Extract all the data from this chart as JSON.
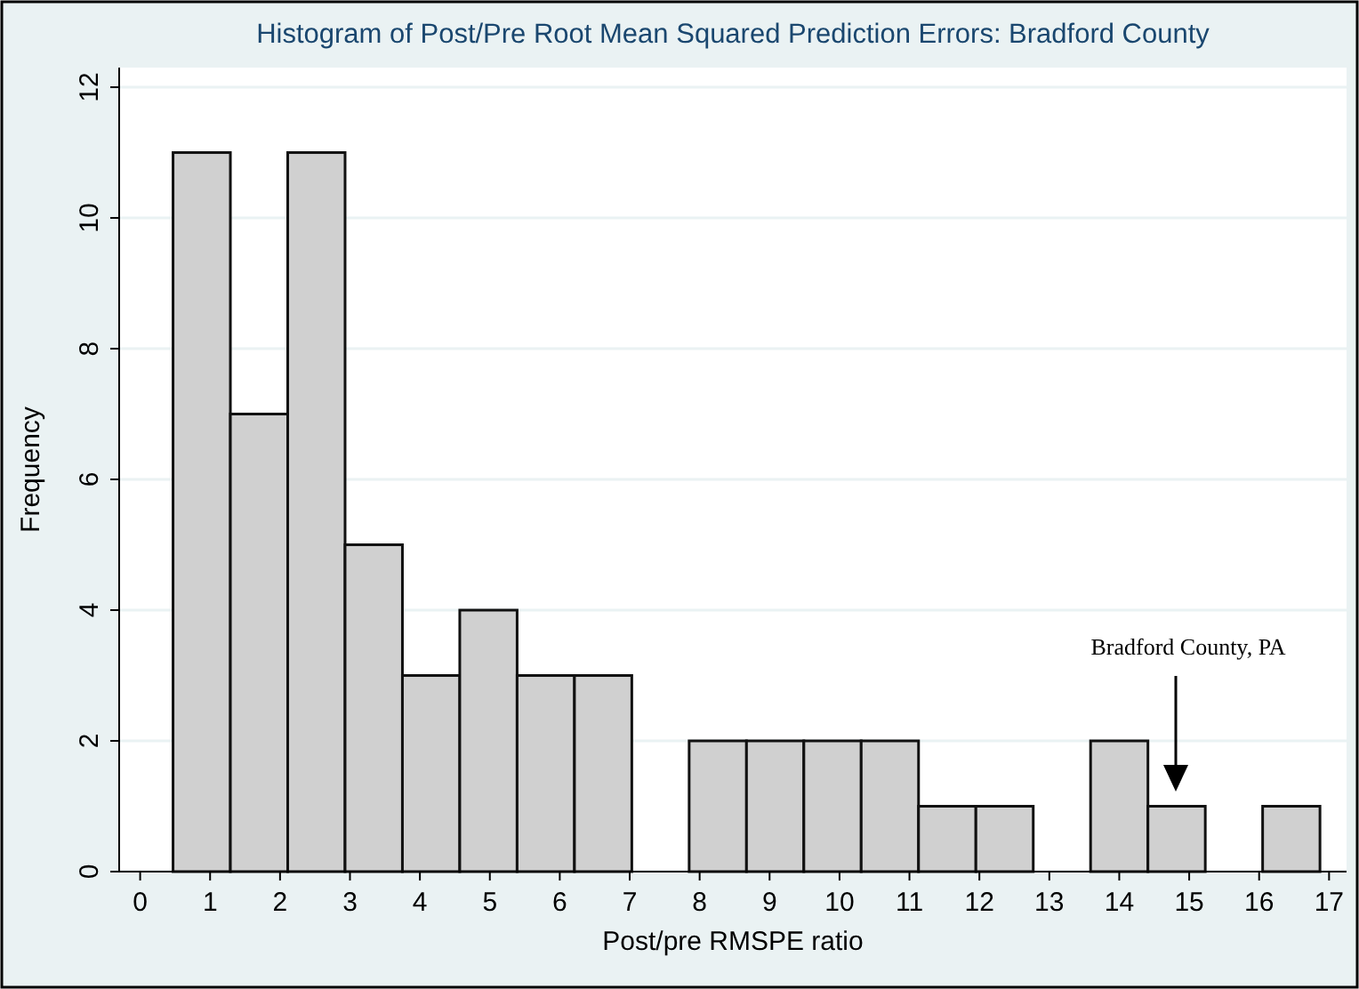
{
  "chart_data": {
    "type": "histogram",
    "title": "Histogram of Post/Pre Root Mean Squared Prediction Errors: Bradford County",
    "xlabel": "Post/pre RMSPE ratio",
    "ylabel": "Frequency",
    "bins": [
      0.47,
      1.29,
      2.11,
      2.93,
      3.75,
      4.57,
      5.39,
      6.21,
      7.03,
      7.85,
      8.67,
      9.49,
      10.31,
      11.13,
      11.95,
      12.77,
      13.59,
      14.41,
      15.23,
      16.05,
      16.87
    ],
    "values": [
      11,
      7,
      11,
      5,
      3,
      4,
      3,
      3,
      0,
      2,
      2,
      2,
      2,
      1,
      1,
      0,
      2,
      1,
      0,
      1
    ],
    "color": "#d0d0d0",
    "xlim": [
      -0.3,
      17.25
    ],
    "xticks": [
      0,
      1,
      2,
      3,
      4,
      5,
      6,
      7,
      8,
      9,
      10,
      11,
      12,
      13,
      14,
      15,
      16,
      17
    ],
    "ylim": [
      0,
      12.3
    ],
    "yticks": [
      0,
      2,
      4,
      6,
      8,
      10,
      12
    ],
    "grid": "y",
    "annotations": [
      "Bradford County, PA"
    ]
  }
}
